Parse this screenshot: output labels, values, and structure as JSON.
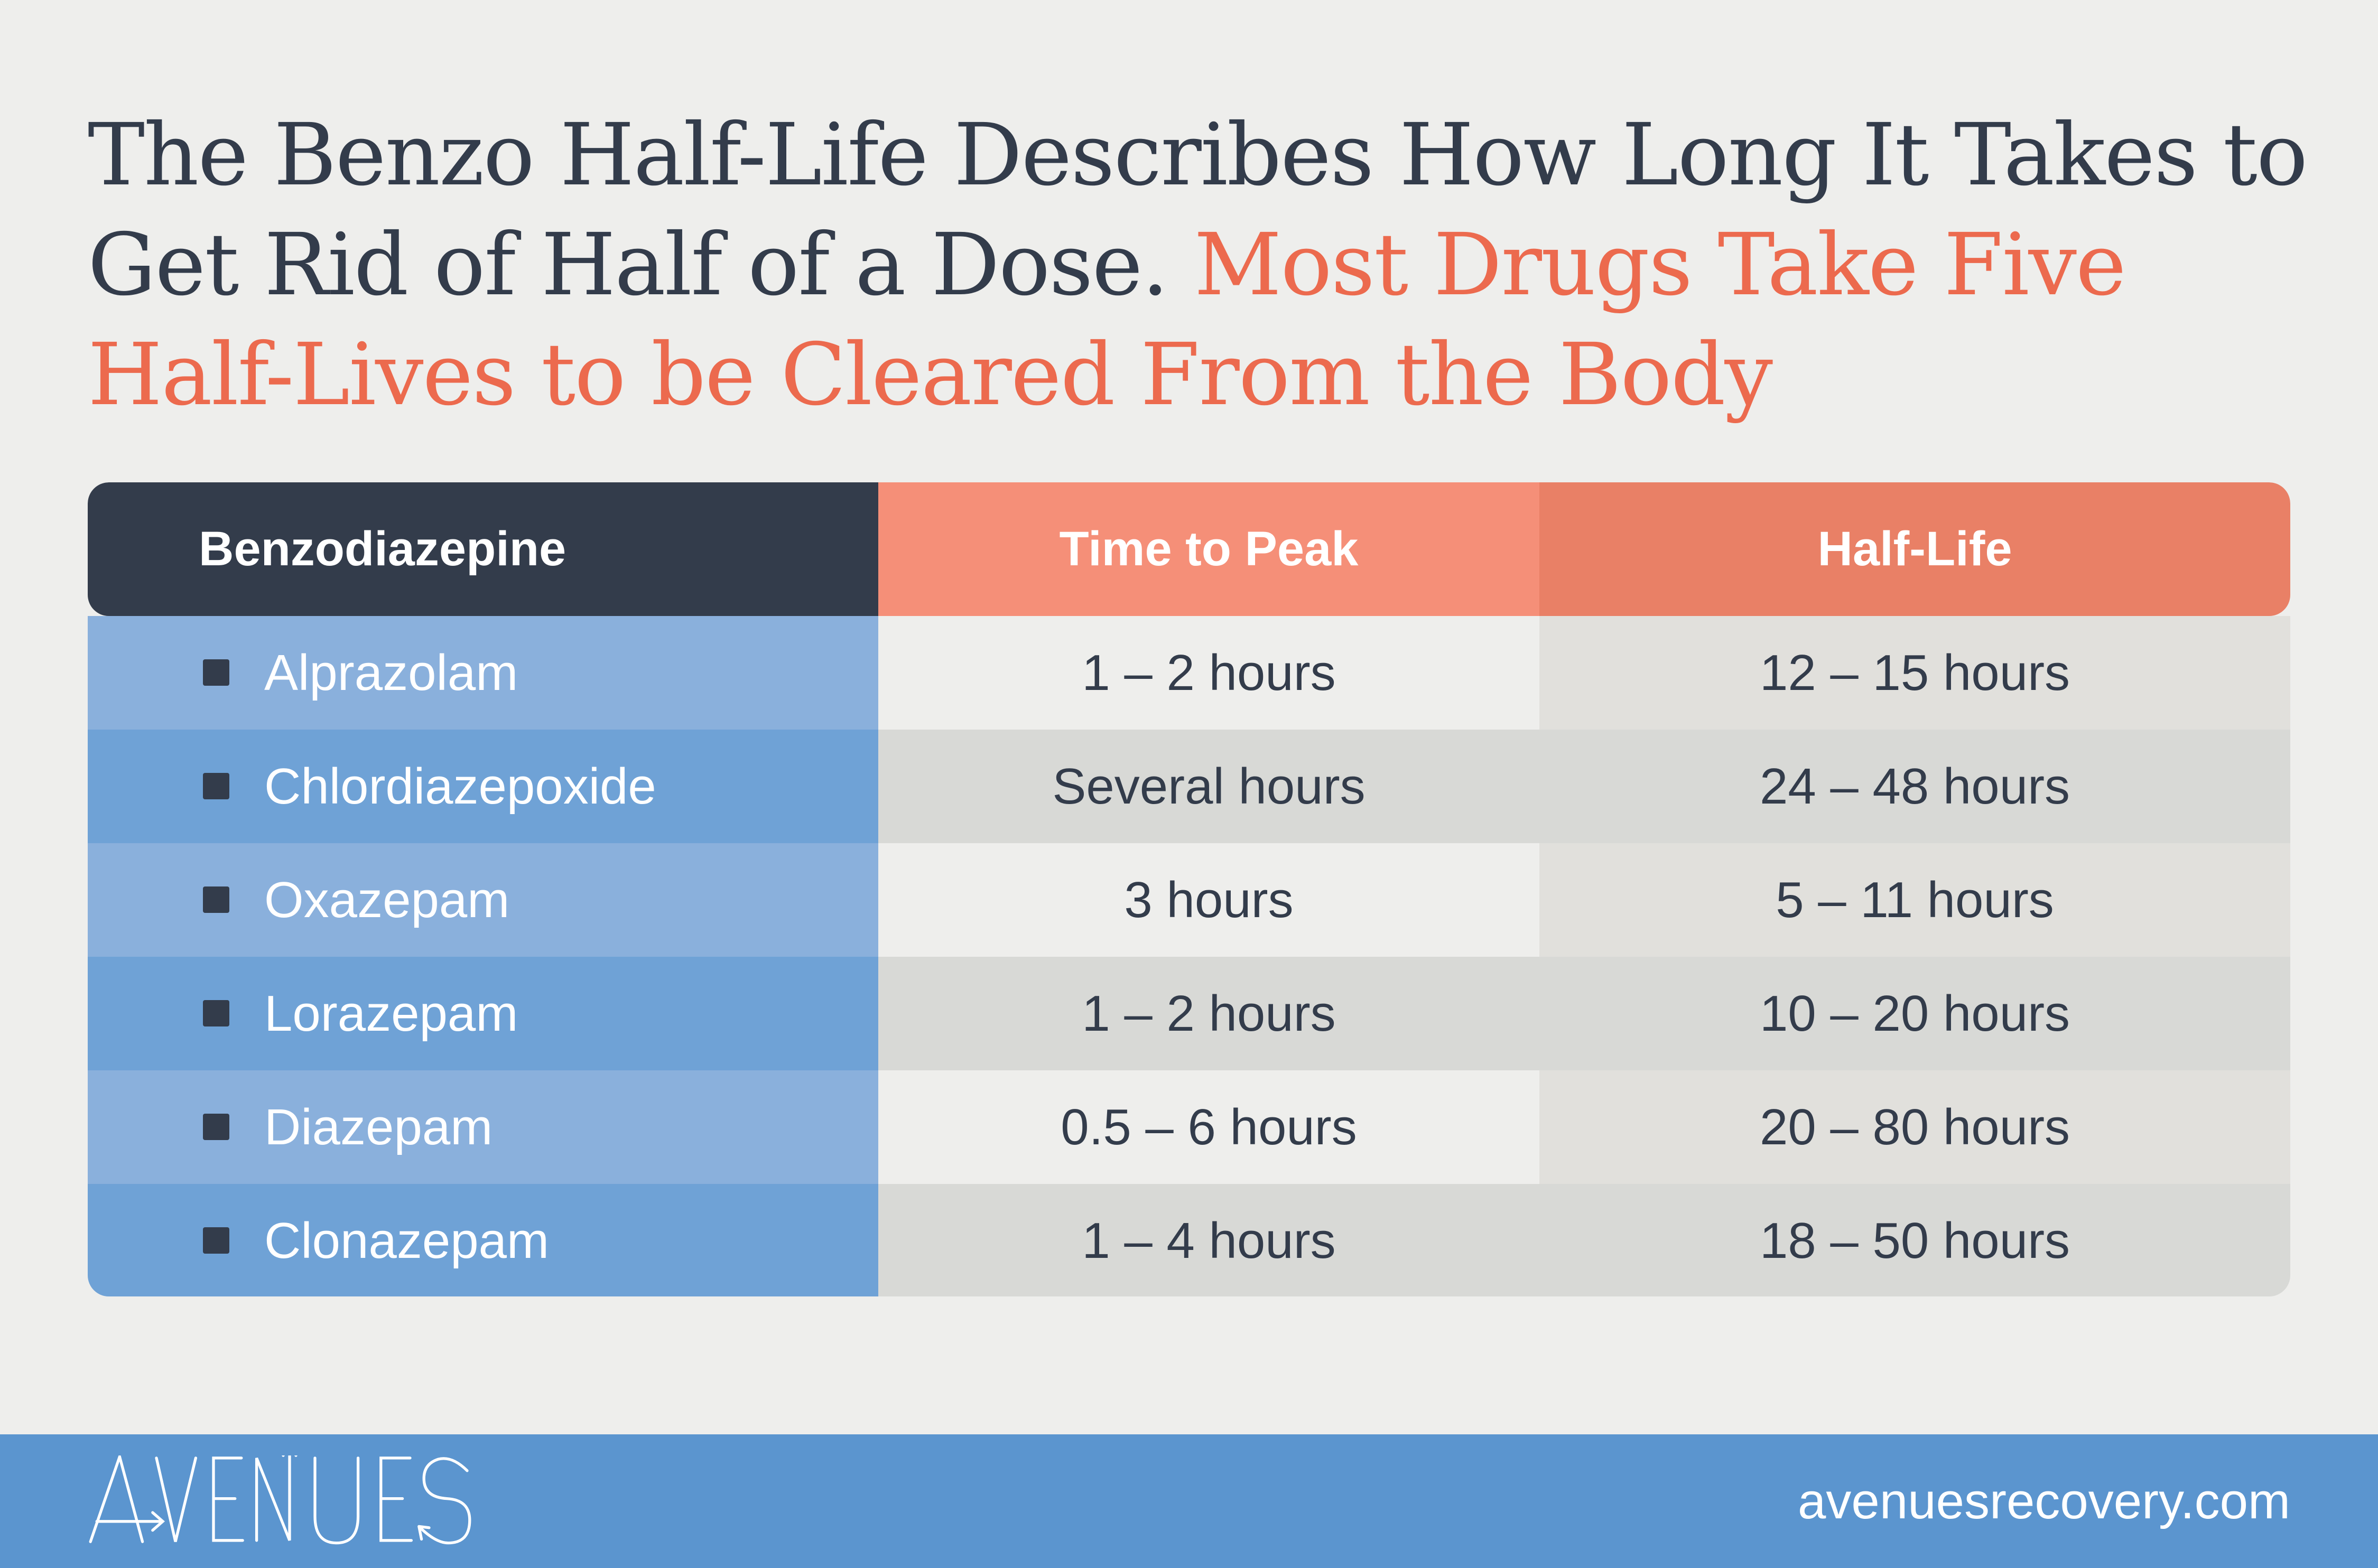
{
  "title": {
    "main": "The Benzo Half-Life Describes How Long It Takes to Get Rid of Half of a Dose.",
    "accent": "Most Drugs Take Five Half-Lives to be Cleared From the Body"
  },
  "table": {
    "headers": [
      "Benzodiazepine",
      "Time to Peak",
      "Half-Life"
    ],
    "rows": [
      {
        "name": "Alprazolam",
        "peak": "1 – 2 hours",
        "half_life": "12 – 15 hours"
      },
      {
        "name": "Chlordiazepoxide",
        "peak": "Several hours",
        "half_life": "24 – 48 hours"
      },
      {
        "name": "Oxazepam",
        "peak": "3 hours",
        "half_life": "5 – 11 hours"
      },
      {
        "name": "Lorazepam",
        "peak": "1 – 2 hours",
        "half_life": "10 – 20 hours"
      },
      {
        "name": "Diazepam",
        "peak": "0.5 – 6 hours",
        "half_life": "20 – 80 hours"
      },
      {
        "name": "Clonazepam",
        "peak": "1 – 4 hours",
        "half_life": "18 – 50 hours"
      }
    ]
  },
  "footer": {
    "logo": "AVENUES",
    "url": "avenuesrecovery.com"
  },
  "colors": {
    "dark": "#333c4b",
    "accent": "#ec6a4e",
    "header_peak": "#f58f78",
    "header_half_life": "#e98066",
    "footer": "#5b95cf"
  }
}
